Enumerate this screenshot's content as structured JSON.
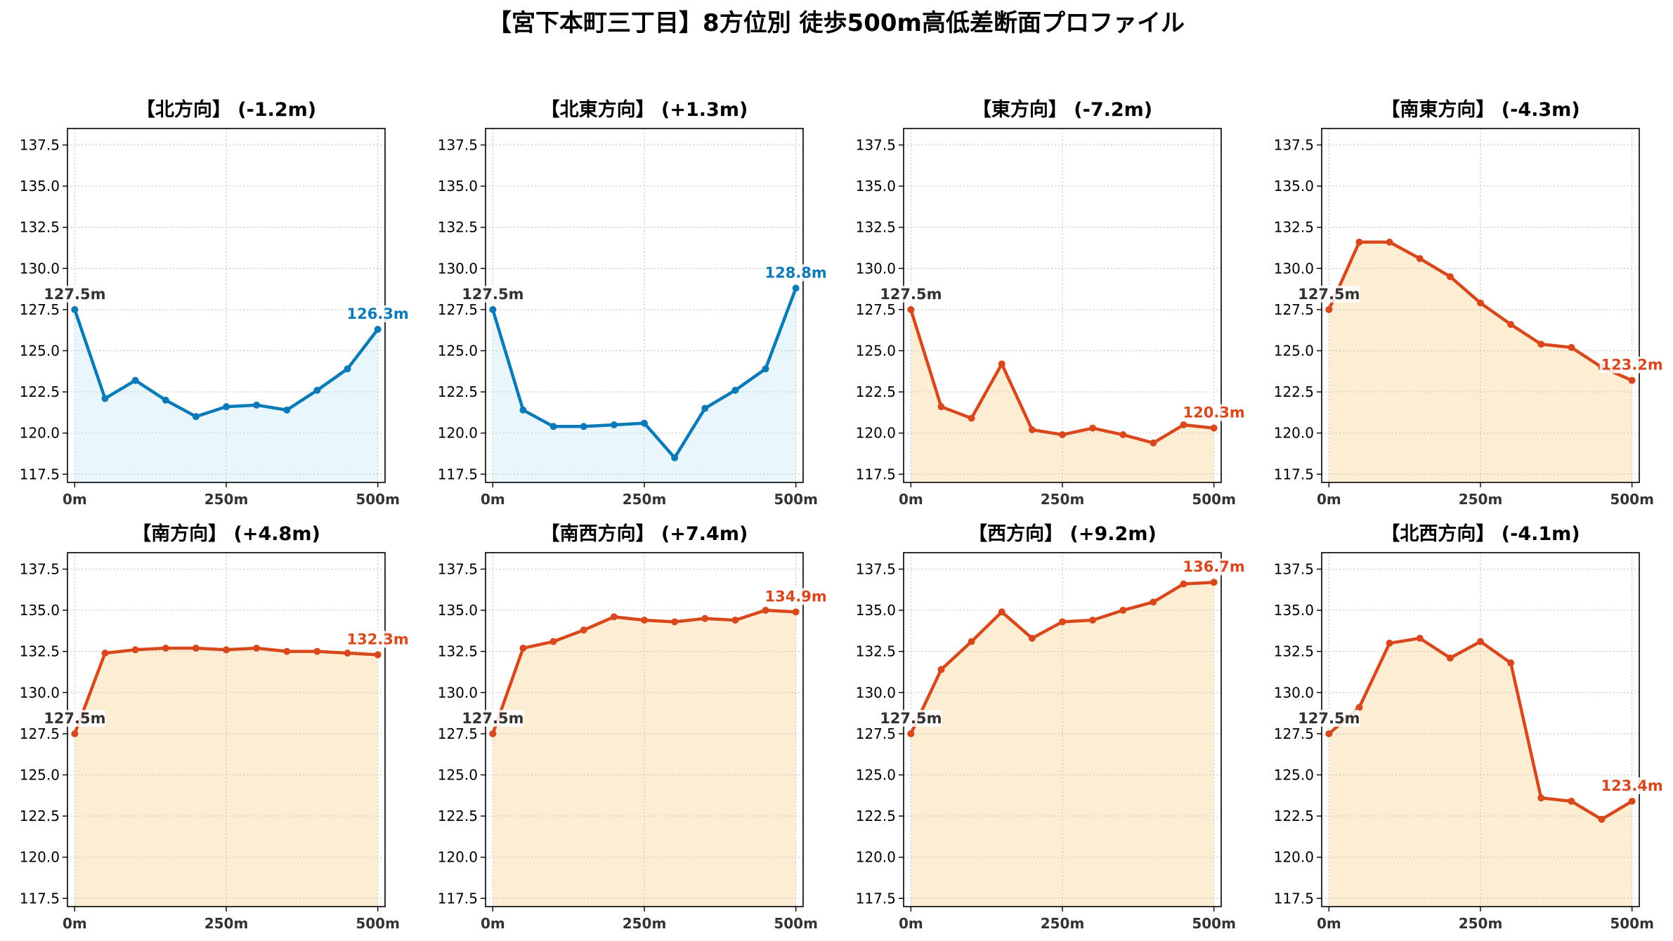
{
  "title": "【宮下本町三丁目】8方位別 徒歩500m高低差断面プロファイル",
  "colors": {
    "descending_line": "#0a7ab8",
    "descending_fill": "#e9f6fc",
    "ascending_line": "#d9481c",
    "ascending_fill": "#fdedd3",
    "start_label": "#333333",
    "grid": "#c8c8c8"
  },
  "chart_data": [
    {
      "type": "area",
      "title": "【北方向】 (-1.2m)",
      "trend": "descending",
      "x_tick_labels": [
        "0m",
        "250m",
        "500m"
      ],
      "y_tick_labels": [
        "117.5",
        "120.0",
        "122.5",
        "125.0",
        "127.5",
        "130.0",
        "132.5",
        "135.0",
        "137.5"
      ],
      "ylim": [
        117,
        138.5
      ],
      "xlim": [
        -12,
        512
      ],
      "grid": true,
      "start_label": "127.5m",
      "end_label": "126.3m",
      "series": [
        {
          "x": [
            0,
            50,
            100,
            150,
            200,
            250,
            300,
            350,
            400,
            450,
            500
          ],
          "y": [
            127.5,
            122.1,
            123.2,
            122.0,
            121.0,
            121.6,
            121.7,
            121.4,
            122.6,
            123.9,
            126.3
          ]
        }
      ]
    },
    {
      "type": "area",
      "title": "【北東方向】 (+1.3m)",
      "trend": "descending",
      "x_tick_labels": [
        "0m",
        "250m",
        "500m"
      ],
      "y_tick_labels": [
        "117.5",
        "120.0",
        "122.5",
        "125.0",
        "127.5",
        "130.0",
        "132.5",
        "135.0",
        "137.5"
      ],
      "ylim": [
        117,
        138.5
      ],
      "xlim": [
        -12,
        512
      ],
      "grid": true,
      "start_label": "127.5m",
      "end_label": "128.8m",
      "series": [
        {
          "x": [
            0,
            50,
            100,
            150,
            200,
            250,
            300,
            350,
            400,
            450,
            500
          ],
          "y": [
            127.5,
            121.4,
            120.4,
            120.4,
            120.5,
            120.6,
            118.5,
            121.5,
            122.6,
            123.9,
            128.8
          ]
        }
      ]
    },
    {
      "type": "area",
      "title": "【東方向】 (-7.2m)",
      "trend": "ascending",
      "x_tick_labels": [
        "0m",
        "250m",
        "500m"
      ],
      "y_tick_labels": [
        "117.5",
        "120.0",
        "122.5",
        "125.0",
        "127.5",
        "130.0",
        "132.5",
        "135.0",
        "137.5"
      ],
      "ylim": [
        117,
        138.5
      ],
      "xlim": [
        -12,
        512
      ],
      "grid": true,
      "start_label": "127.5m",
      "end_label": "120.3m",
      "series": [
        {
          "x": [
            0,
            50,
            100,
            150,
            200,
            250,
            300,
            350,
            400,
            450,
            500
          ],
          "y": [
            127.5,
            121.6,
            120.9,
            124.2,
            120.2,
            119.9,
            120.3,
            119.9,
            119.4,
            120.5,
            120.3
          ]
        }
      ]
    },
    {
      "type": "area",
      "title": "【南東方向】 (-4.3m)",
      "trend": "ascending",
      "x_tick_labels": [
        "0m",
        "250m",
        "500m"
      ],
      "y_tick_labels": [
        "117.5",
        "120.0",
        "122.5",
        "125.0",
        "127.5",
        "130.0",
        "132.5",
        "135.0",
        "137.5"
      ],
      "ylim": [
        117,
        138.5
      ],
      "xlim": [
        -12,
        512
      ],
      "grid": true,
      "start_label": "127.5m",
      "end_label": "123.2m",
      "series": [
        {
          "x": [
            0,
            50,
            100,
            150,
            200,
            250,
            300,
            350,
            400,
            450,
            500
          ],
          "y": [
            127.5,
            131.6,
            131.6,
            130.6,
            129.5,
            127.9,
            126.6,
            125.4,
            125.2,
            124.0,
            123.2
          ]
        }
      ]
    },
    {
      "type": "area",
      "title": "【南方向】 (+4.8m)",
      "trend": "ascending",
      "x_tick_labels": [
        "0m",
        "250m",
        "500m"
      ],
      "y_tick_labels": [
        "117.5",
        "120.0",
        "122.5",
        "125.0",
        "127.5",
        "130.0",
        "132.5",
        "135.0",
        "137.5"
      ],
      "ylim": [
        117,
        138.5
      ],
      "xlim": [
        -12,
        512
      ],
      "grid": true,
      "start_label": "127.5m",
      "end_label": "132.3m",
      "series": [
        {
          "x": [
            0,
            50,
            100,
            150,
            200,
            250,
            300,
            350,
            400,
            450,
            500
          ],
          "y": [
            127.5,
            132.4,
            132.6,
            132.7,
            132.7,
            132.6,
            132.7,
            132.5,
            132.5,
            132.4,
            132.3
          ]
        }
      ]
    },
    {
      "type": "area",
      "title": "【南西方向】 (+7.4m)",
      "trend": "ascending",
      "x_tick_labels": [
        "0m",
        "250m",
        "500m"
      ],
      "y_tick_labels": [
        "117.5",
        "120.0",
        "122.5",
        "125.0",
        "127.5",
        "130.0",
        "132.5",
        "135.0",
        "137.5"
      ],
      "ylim": [
        117,
        138.5
      ],
      "xlim": [
        -12,
        512
      ],
      "grid": true,
      "start_label": "127.5m",
      "end_label": "134.9m",
      "series": [
        {
          "x": [
            0,
            50,
            100,
            150,
            200,
            250,
            300,
            350,
            400,
            450,
            500
          ],
          "y": [
            127.5,
            132.7,
            133.1,
            133.8,
            134.6,
            134.4,
            134.3,
            134.5,
            134.4,
            135.0,
            134.9
          ]
        }
      ]
    },
    {
      "type": "area",
      "title": "【西方向】 (+9.2m)",
      "trend": "ascending",
      "x_tick_labels": [
        "0m",
        "250m",
        "500m"
      ],
      "y_tick_labels": [
        "117.5",
        "120.0",
        "122.5",
        "125.0",
        "127.5",
        "130.0",
        "132.5",
        "135.0",
        "137.5"
      ],
      "ylim": [
        117,
        138.5
      ],
      "xlim": [
        -12,
        512
      ],
      "grid": true,
      "start_label": "127.5m",
      "end_label": "136.7m",
      "series": [
        {
          "x": [
            0,
            50,
            100,
            150,
            200,
            250,
            300,
            350,
            400,
            450,
            500
          ],
          "y": [
            127.5,
            131.4,
            133.1,
            134.9,
            133.3,
            134.3,
            134.4,
            135.0,
            135.5,
            136.6,
            136.7
          ]
        }
      ]
    },
    {
      "type": "area",
      "title": "【北西方向】 (-4.1m)",
      "trend": "ascending",
      "x_tick_labels": [
        "0m",
        "250m",
        "500m"
      ],
      "y_tick_labels": [
        "117.5",
        "120.0",
        "122.5",
        "125.0",
        "127.5",
        "130.0",
        "132.5",
        "135.0",
        "137.5"
      ],
      "ylim": [
        117,
        138.5
      ],
      "xlim": [
        -12,
        512
      ],
      "grid": true,
      "start_label": "127.5m",
      "end_label": "123.4m",
      "series": [
        {
          "x": [
            0,
            50,
            100,
            150,
            200,
            250,
            300,
            350,
            400,
            450,
            500
          ],
          "y": [
            127.5,
            129.1,
            133.0,
            133.3,
            132.1,
            133.1,
            131.8,
            123.6,
            123.4,
            122.3,
            123.4
          ]
        }
      ]
    }
  ]
}
